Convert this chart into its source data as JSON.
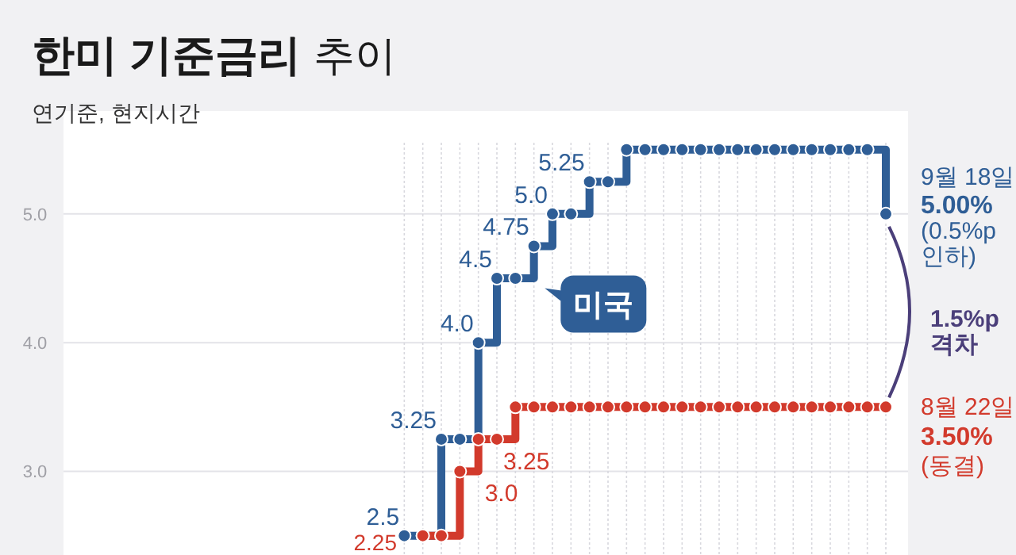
{
  "chart_data": {
    "type": "step",
    "title": "한미 기준금리",
    "subtitle": "추이",
    "ylabel": "연기준, 현지시간",
    "categories": [
      null,
      null,
      null,
      null,
      null,
      null,
      null,
      null,
      null,
      null,
      null,
      null,
      null,
      null,
      null,
      null,
      null,
      null,
      null,
      null,
      null,
      null,
      null,
      null,
      null,
      null,
      null
    ],
    "series": [
      {
        "name": "미국",
        "color": "#2f5e96",
        "values": [
          2.5,
          2.5,
          3.25,
          3.25,
          4.0,
          4.5,
          4.5,
          4.75,
          5.0,
          5.0,
          5.25,
          5.25,
          5.5,
          5.5,
          5.5,
          5.5,
          5.5,
          5.5,
          5.5,
          5.5,
          5.5,
          5.5,
          5.5,
          5.5,
          5.5,
          5.5,
          5.0
        ],
        "value_labels": [
          "2.5",
          null,
          "3.25",
          null,
          "4.0",
          "4.5",
          null,
          "4.75",
          "5.0",
          null,
          "5.25",
          null,
          null,
          null,
          null,
          null,
          null,
          null,
          null,
          null,
          null,
          null,
          null,
          null,
          null,
          null,
          null
        ]
      },
      {
        "color": "#d23a2c",
        "values": [
          null,
          2.5,
          2.5,
          3.0,
          3.25,
          3.25,
          3.5,
          3.5,
          3.5,
          3.5,
          3.5,
          3.5,
          3.5,
          3.5,
          3.5,
          3.5,
          3.5,
          3.5,
          3.5,
          3.5,
          3.5,
          3.5,
          3.5,
          3.5,
          3.5,
          3.5,
          3.5
        ],
        "value_labels": [
          null,
          null,
          null,
          "3.0",
          "3.25",
          null,
          null,
          null,
          null,
          null,
          null,
          null,
          null,
          null,
          null,
          null,
          null,
          null,
          null,
          null,
          null,
          null,
          null,
          null,
          null,
          null,
          null
        ]
      }
    ],
    "ylim": [
      2.35,
      5.8
    ],
    "yticks": [
      {
        "value": 3,
        "label": "3.0"
      },
      {
        "value": 4,
        "label": "4.0"
      },
      {
        "value": 5,
        "label": "5.0"
      }
    ],
    "grid": true,
    "marker": "circle",
    "line_style": "solid",
    "annotations": [
      "9월 18일",
      "5.00%",
      "(0.5%p 인하)",
      "1.5%p 격차",
      "8월 22일",
      "3.50%",
      "(동결)",
      "2.25"
    ]
  }
}
